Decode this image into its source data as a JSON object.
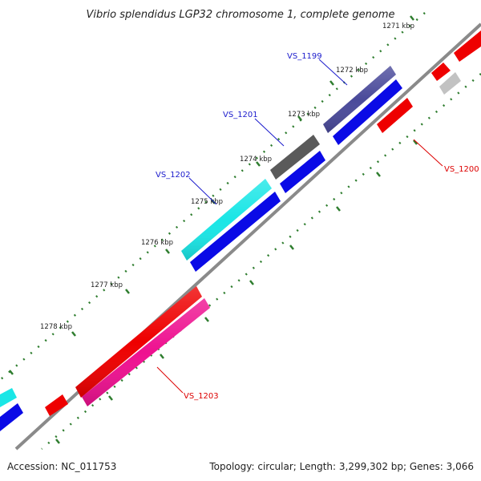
{
  "title": "Vibrio splendidus LGP32 chromosome 1, complete genome",
  "footer": {
    "accession": "Accession: NC_011753",
    "summary": "Topology: circular; Length: 3,299,302 bp; Genes: 3,066"
  },
  "ticks": [
    "1271 kbp",
    "1272 kbp",
    "1273 kbp",
    "1274 kbp",
    "1275 kbp",
    "1276 kbp",
    "1277 kbp",
    "1278 kbp"
  ],
  "gene_labels": [
    "VS_1199",
    "VS_1200",
    "VS_1201",
    "VS_1202",
    "VS_1203"
  ],
  "colors": {
    "backbone": "#8a8a8a",
    "tick": "#2e7d2e",
    "label_plus": "#1a1acc",
    "label_minus": "#dd0000",
    "blue": "#0a0ae6",
    "red": "#ee0000",
    "magenta": "#ee1190",
    "cyan": "#1ae6e6",
    "slate": "#4a4a9a",
    "dark_gray": "#5a5a5a",
    "light_gray": "#c2c2c2"
  }
}
